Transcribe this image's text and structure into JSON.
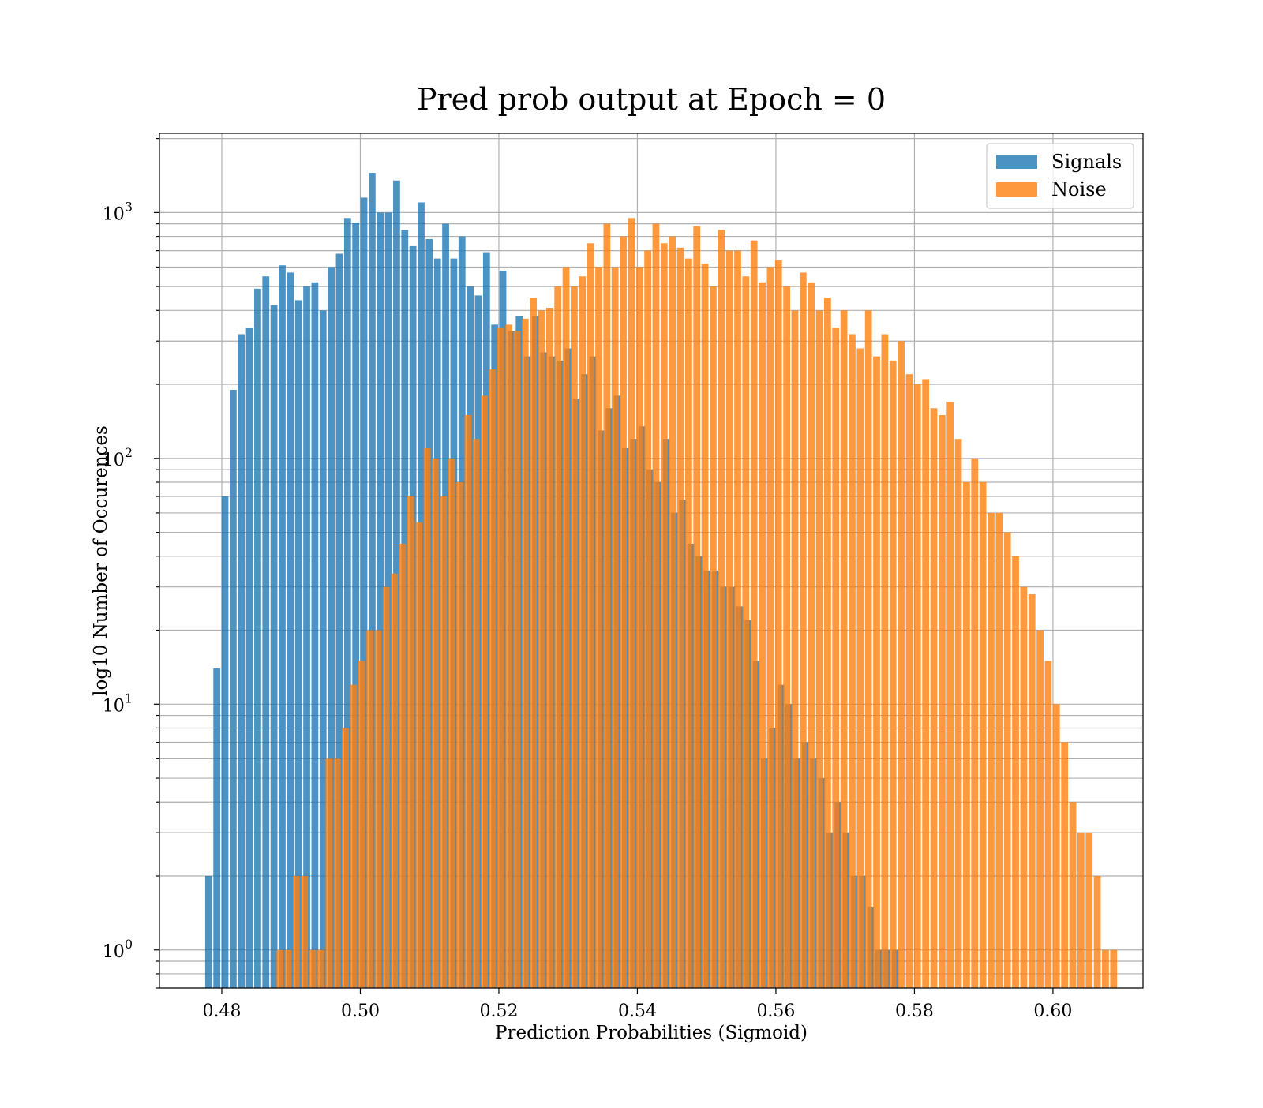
{
  "chart_data": {
    "type": "bar",
    "title": "Pred prob output at Epoch = 0",
    "xlabel": "Prediction Probabilities (Sigmoid)",
    "ylabel": "log10 Number of Occurences",
    "yscale": "log",
    "xlim": [
      0.471,
      0.613
    ],
    "ylim": [
      0.7,
      2100
    ],
    "grid": true,
    "legend_position": "top-right",
    "x_ticks": [
      "0.48",
      "0.50",
      "0.52",
      "0.54",
      "0.56",
      "0.58",
      "0.60"
    ],
    "y_ticks": [
      {
        "base": "10",
        "exp": "0"
      },
      {
        "base": "10",
        "exp": "1"
      },
      {
        "base": "10",
        "exp": "2"
      },
      {
        "base": "10",
        "exp": "3"
      }
    ],
    "series": [
      {
        "name": "Signals",
        "color": "#1f77b4",
        "alpha": 0.8,
        "bin_start": 0.4776,
        "bin_width": 0.00118,
        "values": [
          2,
          14,
          70,
          190,
          320,
          340,
          490,
          550,
          420,
          610,
          570,
          440,
          500,
          520,
          400,
          600,
          680,
          950,
          910,
          1150,
          1450,
          1000,
          1000,
          1350,
          850,
          730,
          1100,
          780,
          650,
          900,
          650,
          800,
          500,
          460,
          690,
          350,
          580,
          330,
          380,
          260,
          380,
          270,
          260,
          250,
          280,
          175,
          220,
          260,
          130,
          160,
          180,
          110,
          120,
          135,
          90,
          80,
          120,
          60,
          68,
          45,
          40,
          35,
          35,
          30,
          30,
          25,
          22,
          15,
          6,
          8,
          12,
          10,
          6,
          7,
          6,
          5,
          3,
          4,
          3,
          2,
          2,
          1.5,
          1,
          1,
          1
        ]
      },
      {
        "name": "Noise",
        "color": "#ff7f0e",
        "alpha": 0.8,
        "bin_start": 0.4879,
        "bin_width": 0.00118,
        "values": [
          1,
          1,
          2,
          2,
          1,
          1,
          6,
          6,
          8,
          12,
          15,
          20,
          20,
          30,
          34,
          45,
          70,
          55,
          110,
          100,
          70,
          100,
          80,
          150,
          120,
          180,
          230,
          340,
          350,
          330,
          370,
          450,
          400,
          410,
          500,
          600,
          500,
          550,
          750,
          600,
          900,
          600,
          800,
          950,
          600,
          700,
          900,
          750,
          800,
          720,
          650,
          880,
          620,
          500,
          850,
          700,
          700,
          550,
          770,
          520,
          600,
          640,
          500,
          400,
          570,
          520,
          400,
          450,
          340,
          400,
          320,
          280,
          400,
          260,
          320,
          250,
          300,
          220,
          200,
          210,
          160,
          150,
          170,
          120,
          80,
          100,
          80,
          60,
          60,
          50,
          40,
          30,
          28,
          20,
          15,
          10,
          7,
          4,
          3,
          3,
          2,
          1,
          1
        ]
      }
    ]
  }
}
